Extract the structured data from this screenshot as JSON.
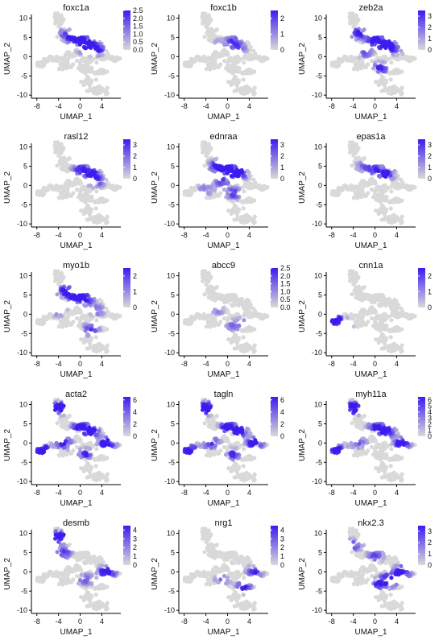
{
  "figure": {
    "type": "feature-plot-grid"
  },
  "colors": {
    "low": "#d9d9d9",
    "high": "#3a1cf0"
  },
  "chart_data": [
    {
      "type": "scatter",
      "title": "foxc1a",
      "xlabel": "UMAP_1",
      "ylabel": "UMAP_2",
      "xticks": [
        "-8",
        "-4",
        "0",
        "4"
      ],
      "yticks": [
        "10",
        "5",
        "0",
        "-5",
        "-10"
      ],
      "legend_ticks": [
        "2.5",
        "2.0",
        "1.5",
        "1.0",
        "0.5",
        "0.0"
      ],
      "max": 2.5,
      "hot": [
        {
          "x": -1,
          "y": 5,
          "w": 1.3
        },
        {
          "x": 1,
          "y": 4,
          "w": 1
        },
        {
          "x": 3,
          "y": 2,
          "w": 1
        },
        {
          "x": 1,
          "y": 2,
          "w": 0.7
        },
        {
          "x": -3,
          "y": 6,
          "w": 0.5
        }
      ]
    },
    {
      "type": "scatter",
      "title": "foxc1b",
      "xlabel": "UMAP_1",
      "ylabel": "UMAP_2",
      "xticks": [
        "-8",
        "-4",
        "0",
        "4"
      ],
      "yticks": [
        "10",
        "5",
        "0",
        "-5",
        "-10"
      ],
      "legend_ticks": [
        "2",
        "1",
        "0"
      ],
      "max": 2.5,
      "hot": [
        {
          "x": 1,
          "y": 4,
          "w": 0.7
        },
        {
          "x": 2,
          "y": 2,
          "w": 0.6
        },
        {
          "x": -2,
          "y": 3,
          "w": 0.4
        }
      ]
    },
    {
      "type": "scatter",
      "title": "zeb2a",
      "xlabel": "UMAP_1",
      "ylabel": "UMAP_2",
      "xticks": [
        "-8",
        "-4",
        "0",
        "4"
      ],
      "yticks": [
        "10",
        "5",
        "0",
        "-5",
        "-10"
      ],
      "legend_ticks": [
        "3",
        "2",
        "1",
        "0"
      ],
      "max": 3.5,
      "hot": [
        {
          "x": 0,
          "y": 4,
          "w": 1.2
        },
        {
          "x": 2,
          "y": 3,
          "w": 1.2
        },
        {
          "x": -3,
          "y": 6,
          "w": 0.9
        },
        {
          "x": 1,
          "y": -3,
          "w": 0.9
        },
        {
          "x": -2,
          "y": 1,
          "w": 0.6
        },
        {
          "x": 4,
          "y": 2,
          "w": 0.6
        }
      ]
    },
    {
      "type": "scatter",
      "title": "rasl12",
      "xlabel": "UMAP_1",
      "ylabel": "UMAP_2",
      "xticks": [
        "-8",
        "-4",
        "0",
        "4"
      ],
      "yticks": [
        "10",
        "5",
        "0",
        "-5",
        "-10"
      ],
      "legend_ticks": [
        "3",
        "2",
        "1",
        "0"
      ],
      "max": 3.5,
      "hot": [
        {
          "x": 2,
          "y": 3,
          "w": 1.1
        },
        {
          "x": 0,
          "y": 4,
          "w": 0.8
        },
        {
          "x": 3,
          "y": 1,
          "w": 0.7
        }
      ]
    },
    {
      "type": "scatter",
      "title": "ednraa",
      "xlabel": "UMAP_1",
      "ylabel": "UMAP_2",
      "xticks": [
        "-8",
        "-4",
        "0",
        "4"
      ],
      "yticks": [
        "10",
        "5",
        "0",
        "-5",
        "-10"
      ],
      "legend_ticks": [
        "3",
        "2",
        "1",
        "0"
      ],
      "max": 3.5,
      "hot": [
        {
          "x": 0,
          "y": 4,
          "w": 1.2
        },
        {
          "x": 2,
          "y": 3,
          "w": 1.2
        },
        {
          "x": -2,
          "y": 5,
          "w": 0.9
        },
        {
          "x": 1,
          "y": -2,
          "w": 0.8
        },
        {
          "x": -1,
          "y": 1,
          "w": 0.7
        },
        {
          "x": -4,
          "y": -1,
          "w": 0.5
        }
      ]
    },
    {
      "type": "scatter",
      "title": "epas1a",
      "xlabel": "UMAP_1",
      "ylabel": "UMAP_2",
      "xticks": [
        "-8",
        "-4",
        "0",
        "4"
      ],
      "yticks": [
        "10",
        "5",
        "0",
        "-5",
        "-10"
      ],
      "legend_ticks": [
        "3",
        "2",
        "1",
        "0"
      ],
      "max": 3.5,
      "hot": [
        {
          "x": 2,
          "y": 3,
          "w": 1
        },
        {
          "x": 0,
          "y": 4,
          "w": 0.7
        },
        {
          "x": -2,
          "y": 5,
          "w": 0.5
        }
      ]
    },
    {
      "type": "scatter",
      "title": "myo1b",
      "xlabel": "UMAP_1",
      "ylabel": "UMAP_2",
      "xticks": [
        "-8",
        "-4",
        "0",
        "4"
      ],
      "yticks": [
        "10",
        "5",
        "0",
        "-5",
        "-10"
      ],
      "legend_ticks": [
        "2",
        "1",
        "0"
      ],
      "max": 2.5,
      "hot": [
        {
          "x": -1,
          "y": 5,
          "w": 1
        },
        {
          "x": 1,
          "y": 4,
          "w": 1
        },
        {
          "x": -3,
          "y": 6,
          "w": 0.9
        },
        {
          "x": 2,
          "y": -4,
          "w": 0.8
        },
        {
          "x": -4,
          "y": 1,
          "w": 0.6
        },
        {
          "x": 3,
          "y": 1,
          "w": 0.6
        }
      ]
    },
    {
      "type": "scatter",
      "title": "abcc9",
      "xlabel": "UMAP_1",
      "ylabel": "UMAP_2",
      "xticks": [
        "-8",
        "-4",
        "0",
        "4"
      ],
      "yticks": [
        "10",
        "5",
        "0",
        "-5",
        "-10"
      ],
      "legend_ticks": [
        "2.5",
        "2.0",
        "1.5",
        "1.0",
        "0.5",
        "0.0"
      ],
      "max": 2.5,
      "hot": [
        {
          "x": -2,
          "y": 1,
          "w": 0.4
        },
        {
          "x": 1,
          "y": -3,
          "w": 0.5
        },
        {
          "x": 3,
          "y": -2,
          "w": 0.3
        }
      ]
    },
    {
      "type": "scatter",
      "title": "cnn1a",
      "xlabel": "UMAP_1",
      "ylabel": "UMAP_2",
      "xticks": [
        "-8",
        "-4",
        "0",
        "4"
      ],
      "yticks": [
        "10",
        "5",
        "0",
        "-5",
        "-10"
      ],
      "legend_ticks": [
        "2",
        "1",
        "0"
      ],
      "max": 2.5,
      "hot": [
        {
          "x": -7,
          "y": -2,
          "w": 1.5
        },
        {
          "x": -4,
          "y": -5,
          "w": 0.7
        }
      ]
    },
    {
      "type": "scatter",
      "title": "acta2",
      "xlabel": "UMAP_1",
      "ylabel": "UMAP_2",
      "xticks": [
        "-8",
        "-4",
        "0",
        "4"
      ],
      "yticks": [
        "10",
        "5",
        "0",
        "-5",
        "-10"
      ],
      "legend_ticks": [
        "6",
        "4",
        "2",
        "0"
      ],
      "max": 6.5,
      "hot": [
        {
          "x": -4,
          "y": 9,
          "w": 1.5
        },
        {
          "x": -7,
          "y": -2,
          "w": 1.5
        },
        {
          "x": 0,
          "y": 4,
          "w": 1.1
        },
        {
          "x": 2,
          "y": 3,
          "w": 1.2
        },
        {
          "x": 5,
          "y": 0,
          "w": 1.2
        },
        {
          "x": -3,
          "y": 0,
          "w": 0.9
        },
        {
          "x": 1,
          "y": -3,
          "w": 0.8
        }
      ]
    },
    {
      "type": "scatter",
      "title": "tagln",
      "xlabel": "UMAP_1",
      "ylabel": "UMAP_2",
      "xticks": [
        "-8",
        "-4",
        "0",
        "4"
      ],
      "yticks": [
        "10",
        "5",
        "0",
        "-5",
        "-10"
      ],
      "legend_ticks": [
        "6",
        "4",
        "2",
        "0"
      ],
      "max": 6.5,
      "hot": [
        {
          "x": -4,
          "y": 9,
          "w": 1.5
        },
        {
          "x": -7,
          "y": -2,
          "w": 1.5
        },
        {
          "x": 0,
          "y": 4,
          "w": 1.1
        },
        {
          "x": 2,
          "y": 3,
          "w": 1.1
        },
        {
          "x": 5,
          "y": 0,
          "w": 1.2
        },
        {
          "x": -3,
          "y": 0,
          "w": 0.9
        },
        {
          "x": 1,
          "y": -3,
          "w": 0.8
        }
      ]
    },
    {
      "type": "scatter",
      "title": "myh11a",
      "xlabel": "UMAP_1",
      "ylabel": "UMAP_2",
      "xticks": [
        "-8",
        "-4",
        "0",
        "4"
      ],
      "yticks": [
        "10",
        "5",
        "0",
        "-5",
        "-10"
      ],
      "legend_ticks": [
        "6",
        "5",
        "4",
        "3",
        "2",
        "1",
        "0"
      ],
      "max": 6.5,
      "hot": [
        {
          "x": -4,
          "y": 9,
          "w": 1.5
        },
        {
          "x": -7,
          "y": -2,
          "w": 1.3
        },
        {
          "x": 2,
          "y": 3,
          "w": 1.1
        },
        {
          "x": 5,
          "y": 0,
          "w": 1.2
        },
        {
          "x": 0,
          "y": 4,
          "w": 0.8
        },
        {
          "x": -3,
          "y": 0,
          "w": 0.6
        }
      ]
    },
    {
      "type": "scatter",
      "title": "desmb",
      "xlabel": "UMAP_1",
      "ylabel": "UMAP_2",
      "xticks": [
        "-8",
        "-4",
        "0",
        "4"
      ],
      "yticks": [
        "10",
        "5",
        "0",
        "-5",
        "-10"
      ],
      "legend_ticks": [
        "4",
        "3",
        "2",
        "1",
        "0"
      ],
      "max": 4.5,
      "hot": [
        {
          "x": -4,
          "y": 9,
          "w": 1.5
        },
        {
          "x": 5,
          "y": 0,
          "w": 1.3
        },
        {
          "x": -3,
          "y": 5,
          "w": 0.7
        },
        {
          "x": 1,
          "y": -2,
          "w": 0.6
        }
      ]
    },
    {
      "type": "scatter",
      "title": "nrg1",
      "xlabel": "UMAP_1",
      "ylabel": "UMAP_2",
      "xticks": [
        "-8",
        "-4",
        "0",
        "4"
      ],
      "yticks": [
        "10",
        "5",
        "0",
        "-5",
        "-10"
      ],
      "legend_ticks": [
        "4",
        "3",
        "2",
        "1",
        "0"
      ],
      "max": 4.5,
      "hot": [
        {
          "x": 3,
          "y": -4,
          "w": 0.9
        },
        {
          "x": 5,
          "y": 0,
          "w": 0.8
        },
        {
          "x": -1,
          "y": -2,
          "w": 0.5
        }
      ]
    },
    {
      "type": "scatter",
      "title": "nkx2.3",
      "xlabel": "UMAP_1",
      "ylabel": "UMAP_2",
      "xticks": [
        "-8",
        "-4",
        "0",
        "4"
      ],
      "yticks": [
        "10",
        "5",
        "0",
        "-5",
        "-10"
      ],
      "legend_ticks": [
        "3",
        "2",
        "1",
        "0"
      ],
      "max": 3.5,
      "hot": [
        {
          "x": 3,
          "y": -2,
          "w": 1.4
        },
        {
          "x": 5,
          "y": 0,
          "w": 1.3
        },
        {
          "x": 1,
          "y": -3,
          "w": 1.1
        },
        {
          "x": -4,
          "y": 7,
          "w": 0.8
        },
        {
          "x": 0,
          "y": 4,
          "w": 0.7
        }
      ]
    }
  ]
}
